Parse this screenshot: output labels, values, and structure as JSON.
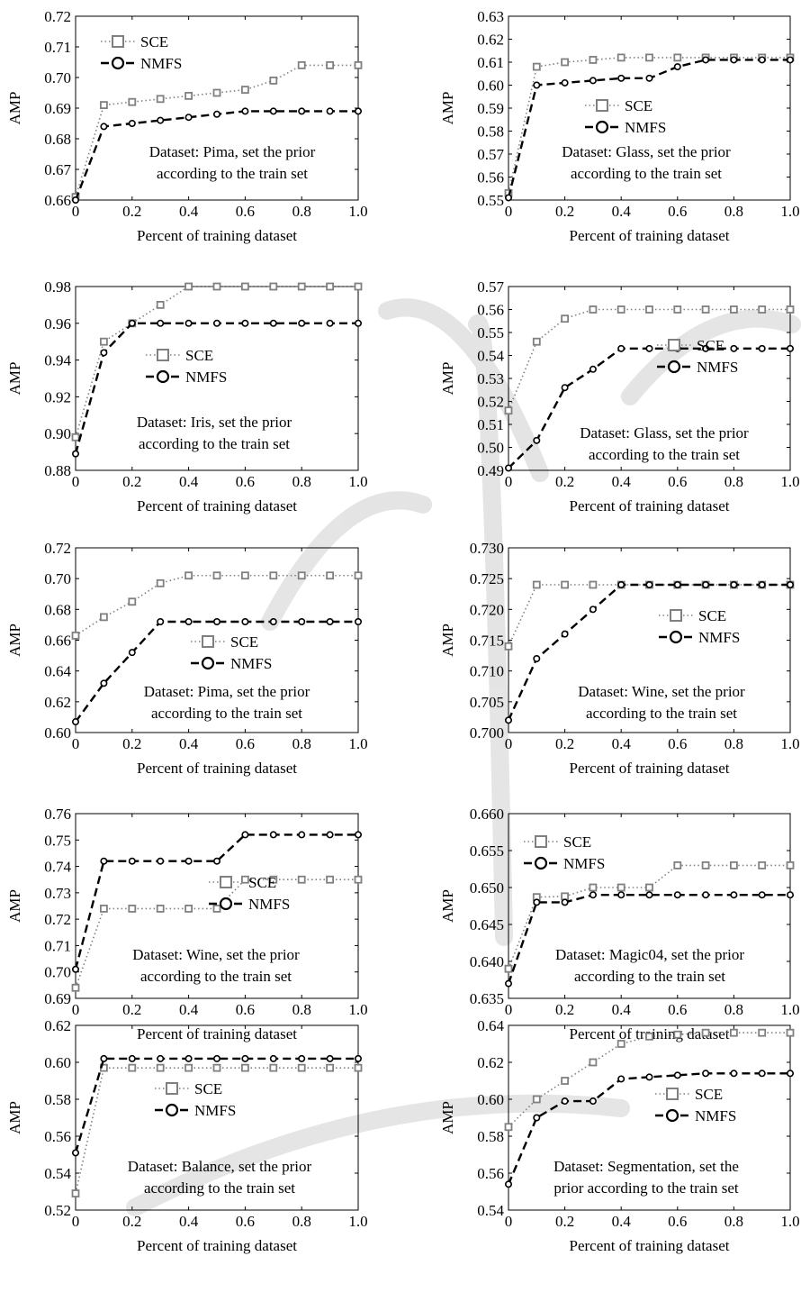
{
  "figure": {
    "colors": {
      "sce": "#808080",
      "nmfs": "#000000",
      "axis": "#000000",
      "background": "#ffffff"
    }
  },
  "chart_data": [
    {
      "type": "line",
      "xlabel": "Percent of training dataset",
      "ylabel": "AMP",
      "x": [
        0,
        0.1,
        0.2,
        0.3,
        0.4,
        0.5,
        0.6,
        0.7,
        0.8,
        0.9,
        1.0
      ],
      "xlim": [
        0,
        1.0
      ],
      "xticks": [
        "0",
        "0.2",
        "0.4",
        "0.6",
        "0.8",
        "1.0"
      ],
      "ylim": [
        0.66,
        0.72
      ],
      "yticks": [
        "0.66",
        "0.67",
        "0.68",
        "0.69",
        "0.70",
        "0.71",
        "0.72"
      ],
      "annotation": [
        "Dataset: Pima, set the prior",
        "according to the train set"
      ],
      "legend_position": "top-left",
      "grid": false,
      "series": [
        {
          "name": "SCE",
          "values": [
            0.661,
            0.691,
            0.692,
            0.693,
            0.694,
            0.695,
            0.696,
            0.699,
            0.704,
            0.704,
            0.704
          ]
        },
        {
          "name": "NMFS",
          "values": [
            0.66,
            0.684,
            0.685,
            0.686,
            0.687,
            0.688,
            0.689,
            0.689,
            0.689,
            0.689,
            0.689
          ]
        }
      ]
    },
    {
      "type": "line",
      "xlabel": "Percent of training dataset",
      "ylabel": "AMP",
      "x": [
        0,
        0.1,
        0.2,
        0.3,
        0.4,
        0.5,
        0.6,
        0.7,
        0.8,
        0.9,
        1.0
      ],
      "xlim": [
        0,
        1.0
      ],
      "xticks": [
        "0",
        "0.2",
        "0.4",
        "0.6",
        "0.8",
        "1.0"
      ],
      "ylim": [
        0.55,
        0.63
      ],
      "yticks": [
        "0.55",
        "0.56",
        "0.57",
        "0.58",
        "0.59",
        "0.60",
        "0.61",
        "0.62",
        "0.63"
      ],
      "annotation": [
        "Dataset: Glass, set the prior",
        "according to the train set"
      ],
      "legend_position": "center-right",
      "grid": false,
      "series": [
        {
          "name": "SCE",
          "values": [
            0.553,
            0.608,
            0.61,
            0.611,
            0.612,
            0.612,
            0.612,
            0.612,
            0.612,
            0.612,
            0.612
          ]
        },
        {
          "name": "NMFS",
          "values": [
            0.551,
            0.6,
            0.601,
            0.602,
            0.603,
            0.603,
            0.608,
            0.611,
            0.611,
            0.611,
            0.611
          ]
        }
      ]
    },
    {
      "type": "line",
      "xlabel": "Percent of training dataset",
      "ylabel": "AMP",
      "x": [
        0,
        0.1,
        0.2,
        0.3,
        0.4,
        0.5,
        0.6,
        0.7,
        0.8,
        0.9,
        1.0
      ],
      "xlim": [
        0,
        1.0
      ],
      "xticks": [
        "0",
        "0.2",
        "0.4",
        "0.6",
        "0.8",
        "1.0"
      ],
      "ylim": [
        0.88,
        0.98
      ],
      "yticks": [
        "0.88",
        "0.90",
        "0.92",
        "0.94",
        "0.96",
        "0.98"
      ],
      "annotation": [
        "Dataset: Iris, set the prior",
        "according to the train set"
      ],
      "legend_position": "center",
      "grid": false,
      "series": [
        {
          "name": "SCE",
          "values": [
            0.898,
            0.95,
            0.96,
            0.97,
            0.98,
            0.98,
            0.98,
            0.98,
            0.98,
            0.98,
            0.98
          ]
        },
        {
          "name": "NMFS",
          "values": [
            0.889,
            0.944,
            0.96,
            0.96,
            0.96,
            0.96,
            0.96,
            0.96,
            0.96,
            0.96,
            0.96
          ]
        }
      ]
    },
    {
      "type": "line",
      "xlabel": "Percent of training dataset",
      "ylabel": "AMP",
      "x": [
        0,
        0.1,
        0.2,
        0.3,
        0.4,
        0.5,
        0.6,
        0.7,
        0.8,
        0.9,
        1.0
      ],
      "xlim": [
        0,
        1.0
      ],
      "xticks": [
        "0",
        "0.2",
        "0.4",
        "0.6",
        "0.8",
        "1.0"
      ],
      "ylim": [
        0.49,
        0.57
      ],
      "yticks": [
        "0.49",
        "0.50",
        "0.51",
        "0.52",
        "0.53",
        "0.54",
        "0.55",
        "0.56",
        "0.57"
      ],
      "annotation": [
        "Dataset: Glass, set the prior",
        "according to the train set"
      ],
      "legend_position": "center-right",
      "grid": false,
      "series": [
        {
          "name": "SCE",
          "values": [
            0.516,
            0.546,
            0.556,
            0.56,
            0.56,
            0.56,
            0.56,
            0.56,
            0.56,
            0.56,
            0.56
          ]
        },
        {
          "name": "NMFS",
          "values": [
            0.491,
            0.503,
            0.526,
            0.534,
            0.543,
            0.543,
            0.543,
            0.543,
            0.543,
            0.543,
            0.543
          ]
        }
      ]
    },
    {
      "type": "line",
      "xlabel": "Percent of training dataset",
      "ylabel": "AMP",
      "x": [
        0,
        0.1,
        0.2,
        0.3,
        0.4,
        0.5,
        0.6,
        0.7,
        0.8,
        0.9,
        1.0
      ],
      "xlim": [
        0,
        1.0
      ],
      "xticks": [
        "0",
        "0.2",
        "0.4",
        "0.6",
        "0.8",
        "1.0"
      ],
      "ylim": [
        0.6,
        0.72
      ],
      "yticks": [
        "0.60",
        "0.62",
        "0.64",
        "0.66",
        "0.68",
        "0.70",
        "0.72"
      ],
      "annotation": [
        "Dataset: Pima, set the prior",
        "according to the train set"
      ],
      "legend_position": "center-right",
      "grid": false,
      "series": [
        {
          "name": "SCE",
          "values": [
            0.663,
            0.675,
            0.685,
            0.697,
            0.702,
            0.702,
            0.702,
            0.702,
            0.702,
            0.702,
            0.702
          ]
        },
        {
          "name": "NMFS",
          "values": [
            0.607,
            0.632,
            0.652,
            0.672,
            0.672,
            0.672,
            0.672,
            0.672,
            0.672,
            0.672,
            0.672
          ]
        }
      ]
    },
    {
      "type": "line",
      "xlabel": "Percent of training dataset",
      "ylabel": "AMP",
      "x": [
        0,
        0.1,
        0.2,
        0.3,
        0.4,
        0.5,
        0.6,
        0.7,
        0.8,
        0.9,
        1.0
      ],
      "xlim": [
        0,
        1.0
      ],
      "xticks": [
        "0",
        "0.2",
        "0.4",
        "0.6",
        "0.8",
        "1.0"
      ],
      "ylim": [
        0.7,
        0.73
      ],
      "yticks": [
        "0.700",
        "0.705",
        "0.710",
        "0.715",
        "0.720",
        "0.725",
        "0.730"
      ],
      "annotation": [
        "Dataset: Wine, set the prior",
        "according to the train set"
      ],
      "legend_position": "center-right",
      "grid": false,
      "series": [
        {
          "name": "SCE",
          "values": [
            0.714,
            0.724,
            0.724,
            0.724,
            0.724,
            0.724,
            0.724,
            0.724,
            0.724,
            0.724,
            0.724
          ]
        },
        {
          "name": "NMFS",
          "values": [
            0.702,
            0.712,
            0.716,
            0.72,
            0.724,
            0.724,
            0.724,
            0.724,
            0.724,
            0.724,
            0.724
          ]
        }
      ]
    },
    {
      "type": "line",
      "xlabel": "Percent of training dataset",
      "ylabel": "AMP",
      "x": [
        0,
        0.1,
        0.2,
        0.3,
        0.4,
        0.5,
        0.6,
        0.7,
        0.8,
        0.9,
        1.0
      ],
      "xlim": [
        0,
        1.0
      ],
      "xticks": [
        "0",
        "0.2",
        "0.4",
        "0.6",
        "0.8",
        "1.0"
      ],
      "ylim": [
        0.69,
        0.76
      ],
      "yticks": [
        "0.69",
        "0.70",
        "0.71",
        "0.72",
        "0.73",
        "0.74",
        "0.75",
        "0.76"
      ],
      "annotation": [
        "Dataset: Wine, set the prior",
        "according to the train set"
      ],
      "legend_position": "center-right",
      "grid": false,
      "series": [
        {
          "name": "SCE",
          "values": [
            0.694,
            0.724,
            0.724,
            0.724,
            0.724,
            0.724,
            0.735,
            0.735,
            0.735,
            0.735,
            0.735
          ]
        },
        {
          "name": "NMFS",
          "values": [
            0.701,
            0.742,
            0.742,
            0.742,
            0.742,
            0.742,
            0.752,
            0.752,
            0.752,
            0.752,
            0.752
          ]
        }
      ]
    },
    {
      "type": "line",
      "xlabel": "Percent of training dataset",
      "ylabel": "AMP",
      "x": [
        0,
        0.1,
        0.2,
        0.3,
        0.4,
        0.5,
        0.6,
        0.7,
        0.8,
        0.9,
        1.0
      ],
      "xlim": [
        0,
        1.0
      ],
      "xticks": [
        "0",
        "0.2",
        "0.4",
        "0.6",
        "0.8",
        "1.0"
      ],
      "ylim": [
        0.635,
        0.66
      ],
      "yticks": [
        "0.635",
        "0.640",
        "0.645",
        "0.650",
        "0.655",
        "0.660"
      ],
      "annotation": [
        "Dataset: Magic04, set the prior",
        "according to the train set"
      ],
      "legend_position": "top-left",
      "grid": false,
      "series": [
        {
          "name": "SCE",
          "values": [
            0.639,
            0.6487,
            0.6488,
            0.65,
            0.65,
            0.65,
            0.653,
            0.653,
            0.653,
            0.653,
            0.653
          ]
        },
        {
          "name": "NMFS",
          "values": [
            0.637,
            0.648,
            0.648,
            0.649,
            0.649,
            0.649,
            0.649,
            0.649,
            0.649,
            0.649,
            0.649
          ]
        }
      ]
    },
    {
      "type": "line",
      "xlabel": "Percent of training dataset",
      "ylabel": "AMP",
      "x": [
        0,
        0.1,
        0.2,
        0.3,
        0.4,
        0.5,
        0.6,
        0.7,
        0.8,
        0.9,
        1.0
      ],
      "xlim": [
        0,
        1.0
      ],
      "xticks": [
        "0",
        "0.2",
        "0.4",
        "0.6",
        "0.8",
        "1.0"
      ],
      "ylim": [
        0.52,
        0.62
      ],
      "yticks": [
        "0.52",
        "0.54",
        "0.56",
        "0.58",
        "0.60",
        "0.62"
      ],
      "annotation": [
        "Dataset: Balance, set the prior",
        "according to the train set"
      ],
      "legend_position": "center",
      "grid": false,
      "series": [
        {
          "name": "SCE",
          "values": [
            0.529,
            0.597,
            0.597,
            0.597,
            0.597,
            0.597,
            0.597,
            0.597,
            0.597,
            0.597,
            0.597
          ]
        },
        {
          "name": "NMFS",
          "values": [
            0.551,
            0.602,
            0.602,
            0.602,
            0.602,
            0.602,
            0.602,
            0.602,
            0.602,
            0.602,
            0.602
          ]
        }
      ]
    },
    {
      "type": "line",
      "xlabel": "Percent of training dataset",
      "ylabel": "AMP",
      "x": [
        0,
        0.1,
        0.2,
        0.3,
        0.4,
        0.5,
        0.6,
        0.7,
        0.8,
        0.9,
        1.0
      ],
      "xlim": [
        0,
        1.0
      ],
      "xticks": [
        "0",
        "0.2",
        "0.4",
        "0.6",
        "0.8",
        "1.0"
      ],
      "ylim": [
        0.54,
        0.64
      ],
      "yticks": [
        "0.54",
        "0.56",
        "0.58",
        "0.60",
        "0.62",
        "0.64"
      ],
      "annotation": [
        "Dataset: Segmentation, set the",
        "prior according to the train set"
      ],
      "legend_position": "center-right",
      "grid": false,
      "series": [
        {
          "name": "SCE",
          "values": [
            0.585,
            0.6,
            0.61,
            0.62,
            0.63,
            0.634,
            0.635,
            0.636,
            0.636,
            0.636,
            0.636
          ]
        },
        {
          "name": "NMFS",
          "values": [
            0.554,
            0.59,
            0.599,
            0.599,
            0.611,
            0.612,
            0.613,
            0.614,
            0.614,
            0.614,
            0.614
          ]
        }
      ]
    }
  ]
}
